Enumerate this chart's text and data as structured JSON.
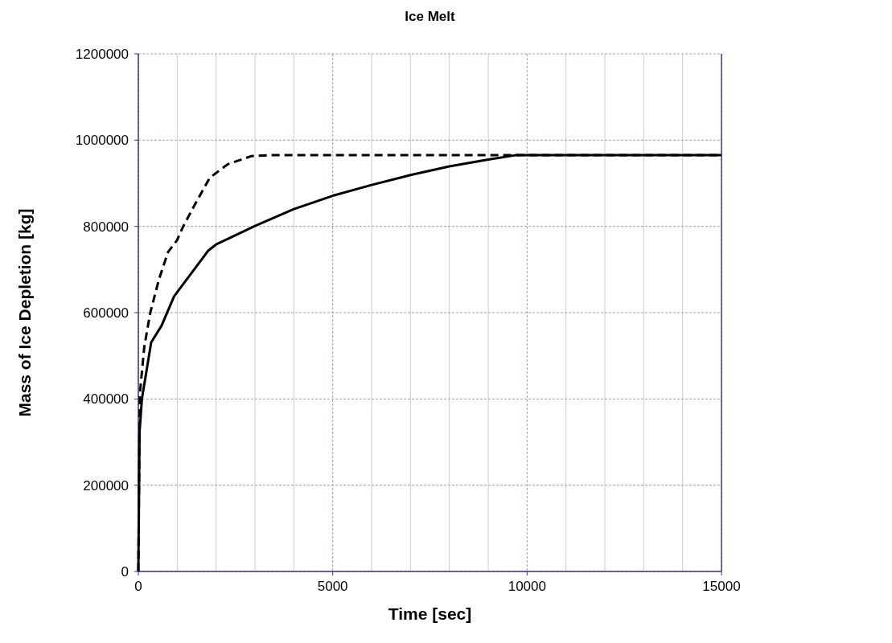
{
  "chart_data": {
    "type": "line",
    "title": "Ice Melt",
    "xlabel": "Time [sec]",
    "ylabel": "Mass of Ice Depletion [kg]",
    "xlim": [
      0,
      15000
    ],
    "ylim": [
      0,
      1200000
    ],
    "xticks": [
      0,
      {
        "value": 1000,
        "label": null
      },
      {
        "value": 2000,
        "label": null
      },
      {
        "value": 3000,
        "label": null
      },
      {
        "value": 4000,
        "label": null
      },
      5000,
      {
        "value": 6000,
        "label": null
      },
      {
        "value": 7000,
        "label": null
      },
      {
        "value": 8000,
        "label": null
      },
      {
        "value": 9000,
        "label": null
      },
      10000,
      {
        "value": 11000,
        "label": null
      },
      {
        "value": 12000,
        "label": null
      },
      {
        "value": 13000,
        "label": null
      },
      {
        "value": 14000,
        "label": null
      },
      15000
    ],
    "yticks": [
      0,
      200000,
      400000,
      600000,
      800000,
      1000000,
      1200000
    ],
    "grid": true,
    "series": [
      {
        "color": "#000000",
        "line_style": "solid",
        "x": [
          0,
          30,
          92,
          330,
          598,
          920,
          1800,
          2000,
          3000,
          4000,
          5000,
          6000,
          7000,
          8000,
          9000,
          9700,
          15000
        ],
        "values": [
          0,
          322000,
          400000,
          531000,
          570000,
          638000,
          744000,
          758000,
          801000,
          840000,
          871000,
          896000,
          919000,
          939000,
          955000,
          965000,
          965000
        ]
      },
      {
        "color": "#000000",
        "line_style": "dashed",
        "x": [
          0,
          38,
          153,
          307,
          536,
          766,
          996,
          1149,
          1456,
          1839,
          2299,
          2912,
          3372,
          15000
        ],
        "values": [
          0,
          411000,
          521000,
          600000,
          679000,
          741000,
          768000,
          799000,
          851000,
          913000,
          944000,
          963000,
          965000,
          965000
        ]
      }
    ]
  }
}
